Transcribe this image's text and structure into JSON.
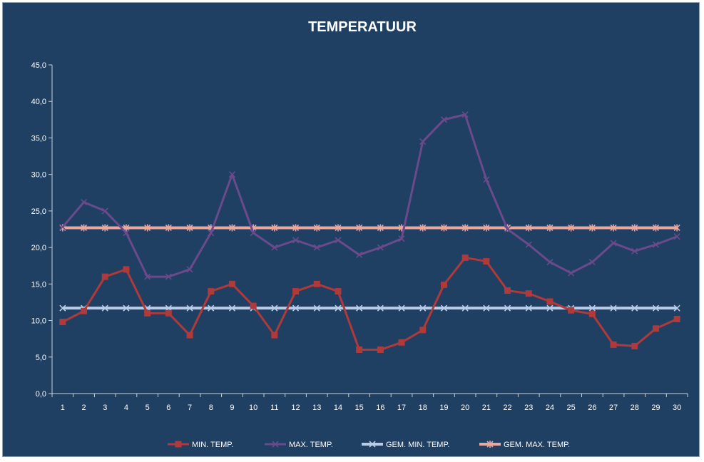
{
  "chart_data": {
    "type": "line",
    "title": "TEMPERATUUR",
    "xlabel": "",
    "ylabel": "",
    "ylim": [
      0,
      45
    ],
    "ytick_step": 5,
    "ytick_labels": [
      "0,0",
      "5,0",
      "10,0",
      "15,0",
      "20,0",
      "25,0",
      "30,0",
      "35,0",
      "40,0",
      "45,0"
    ],
    "grid": false,
    "legend_position": "bottom",
    "categories": [
      "1",
      "2",
      "3",
      "4",
      "5",
      "6",
      "7",
      "8",
      "9",
      "10",
      "11",
      "12",
      "13",
      "14",
      "15",
      "16",
      "17",
      "18",
      "19",
      "20",
      "21",
      "22",
      "23",
      "24",
      "25",
      "26",
      "27",
      "28",
      "29",
      "30"
    ],
    "series": [
      {
        "name": "MIN. TEMP.",
        "color": "#b03a3a",
        "marker": "square",
        "values": [
          9.8,
          11.3,
          16.0,
          17.0,
          11.0,
          11.0,
          8.0,
          14.0,
          15.0,
          12.0,
          8.0,
          14.0,
          15.0,
          14.0,
          6.0,
          6.0,
          7.0,
          8.7,
          14.9,
          18.6,
          18.1,
          14.1,
          13.7,
          12.6,
          11.4,
          10.9,
          6.7,
          6.5,
          8.9,
          10.2
        ]
      },
      {
        "name": "MAX. TEMP.",
        "color": "#6b4a8c",
        "marker": "x",
        "values": [
          22.8,
          26.2,
          25.0,
          22.0,
          16.0,
          16.0,
          17.0,
          22.0,
          30.0,
          22.0,
          20.0,
          21.0,
          20.0,
          21.0,
          19.0,
          20.0,
          21.2,
          34.5,
          37.5,
          38.2,
          29.3,
          22.5,
          20.4,
          18.0,
          16.5,
          18.0,
          20.6,
          19.5,
          20.4,
          21.5
        ]
      },
      {
        "name": "GEM. MIN. TEMP.",
        "color": "#b8cce8",
        "marker": "x",
        "values": [
          11.7,
          11.7,
          11.7,
          11.7,
          11.7,
          11.7,
          11.7,
          11.7,
          11.7,
          11.7,
          11.7,
          11.7,
          11.7,
          11.7,
          11.7,
          11.7,
          11.7,
          11.7,
          11.7,
          11.7,
          11.7,
          11.7,
          11.7,
          11.7,
          11.7,
          11.7,
          11.7,
          11.7,
          11.7,
          11.7
        ]
      },
      {
        "name": "GEM. MAX. TEMP.",
        "color": "#e8a8a0",
        "marker": "star",
        "values": [
          22.7,
          22.7,
          22.7,
          22.7,
          22.7,
          22.7,
          22.7,
          22.7,
          22.7,
          22.7,
          22.7,
          22.7,
          22.7,
          22.7,
          22.7,
          22.7,
          22.7,
          22.7,
          22.7,
          22.7,
          22.7,
          22.7,
          22.7,
          22.7,
          22.7,
          22.7,
          22.7,
          22.7,
          22.7,
          22.7
        ]
      }
    ],
    "colors": {
      "background": "#1f3f63",
      "axis": "#c8d2dc",
      "text": "#ffffff"
    }
  }
}
